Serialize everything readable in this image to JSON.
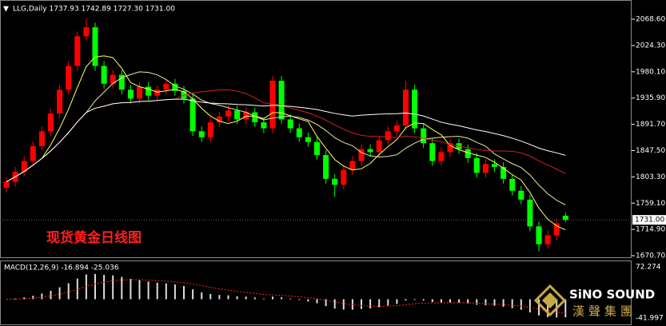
{
  "chart_data": {
    "type": "candlestick",
    "title": "LLG,Daily  1737.93 1742.89 1727.30 1731.00",
    "annotation": "现货黄金日线图",
    "logo_en": "SiNO SOUND",
    "logo_cn": "漢聲集團",
    "open": [
      1785,
      1795,
      1812,
      1830,
      1855,
      1880,
      1910,
      1950,
      1990,
      2040,
      2055,
      1990,
      1960,
      1975,
      1950,
      1935,
      1955,
      1940,
      1950,
      1960,
      1948,
      1935,
      1880,
      1870,
      1895,
      1905,
      1915,
      1900,
      1912,
      1895,
      1885,
      1965,
      1900,
      1885,
      1870,
      1862,
      1840,
      1800,
      1790,
      1815,
      1830,
      1850,
      1845,
      1865,
      1880,
      1890,
      1950,
      1885,
      1860,
      1830,
      1845,
      1860,
      1850,
      1835,
      1810,
      1825,
      1820,
      1800,
      1780,
      1765,
      1720,
      1690,
      1705,
      1737.93
    ],
    "high": [
      1803,
      1820,
      1838,
      1863,
      1888,
      1918,
      1958,
      1998,
      2048,
      2070,
      2063,
      1998,
      1983,
      1983,
      1958,
      1963,
      1963,
      1958,
      1968,
      1968,
      1956,
      1943,
      1888,
      1903,
      1913,
      1923,
      1923,
      1920,
      1920,
      1903,
      1973,
      1973,
      1908,
      1893,
      1878,
      1870,
      1848,
      1808,
      1823,
      1838,
      1858,
      1858,
      1873,
      1888,
      1898,
      1965,
      1958,
      1893,
      1868,
      1853,
      1868,
      1868,
      1858,
      1843,
      1833,
      1833,
      1828,
      1808,
      1788,
      1773,
      1728,
      1713,
      1733,
      1742.89
    ],
    "low": [
      1777,
      1787,
      1804,
      1822,
      1847,
      1872,
      1902,
      1942,
      1982,
      2032,
      1982,
      1952,
      1952,
      1942,
      1927,
      1927,
      1932,
      1932,
      1942,
      1940,
      1927,
      1872,
      1862,
      1862,
      1887,
      1897,
      1892,
      1892,
      1887,
      1877,
      1877,
      1892,
      1877,
      1862,
      1854,
      1832,
      1792,
      1770,
      1782,
      1807,
      1822,
      1837,
      1837,
      1857,
      1872,
      1882,
      1877,
      1852,
      1822,
      1822,
      1837,
      1842,
      1827,
      1802,
      1802,
      1812,
      1792,
      1772,
      1757,
      1712,
      1678,
      1682,
      1697,
      1727.3
    ],
    "close": [
      1795,
      1812,
      1830,
      1855,
      1880,
      1910,
      1950,
      1990,
      2040,
      2055,
      1990,
      1960,
      1975,
      1950,
      1935,
      1955,
      1940,
      1950,
      1960,
      1948,
      1935,
      1880,
      1870,
      1895,
      1905,
      1915,
      1900,
      1912,
      1895,
      1885,
      1965,
      1900,
      1885,
      1870,
      1862,
      1840,
      1800,
      1790,
      1815,
      1830,
      1850,
      1845,
      1865,
      1880,
      1890,
      1950,
      1885,
      1860,
      1830,
      1845,
      1860,
      1850,
      1835,
      1810,
      1825,
      1820,
      1800,
      1780,
      1765,
      1720,
      1690,
      1705,
      1725,
      1731.0
    ],
    "up_color": "#ff0000",
    "down_color": "#00ff00",
    "ylim": [
      1666.7,
      2100.9
    ],
    "yticks": [
      {
        "value": 2068.6,
        "label": "2068.60"
      },
      {
        "value": 2024.3,
        "label": "2024.30"
      },
      {
        "value": 1980.1,
        "label": "1980.10"
      },
      {
        "value": 1935.9,
        "label": "1935.90"
      },
      {
        "value": 1891.7,
        "label": "1891.70"
      },
      {
        "value": 1847.5,
        "label": "1847.50"
      },
      {
        "value": 1803.3,
        "label": "1803.30"
      },
      {
        "value": 1759.1,
        "label": "1759.10"
      },
      {
        "value": 1714.9,
        "label": "1714.90"
      },
      {
        "value": 1670.7,
        "label": "1670.70"
      }
    ],
    "last_price": {
      "value": 1731,
      "label": "1731.00"
    },
    "macd_label": "MACD(12,26,9) -16.894 -25.036",
    "y2lim": [
      -41.997,
      72.274
    ],
    "y2ticks": [
      72.274,
      -41.997
    ]
  }
}
